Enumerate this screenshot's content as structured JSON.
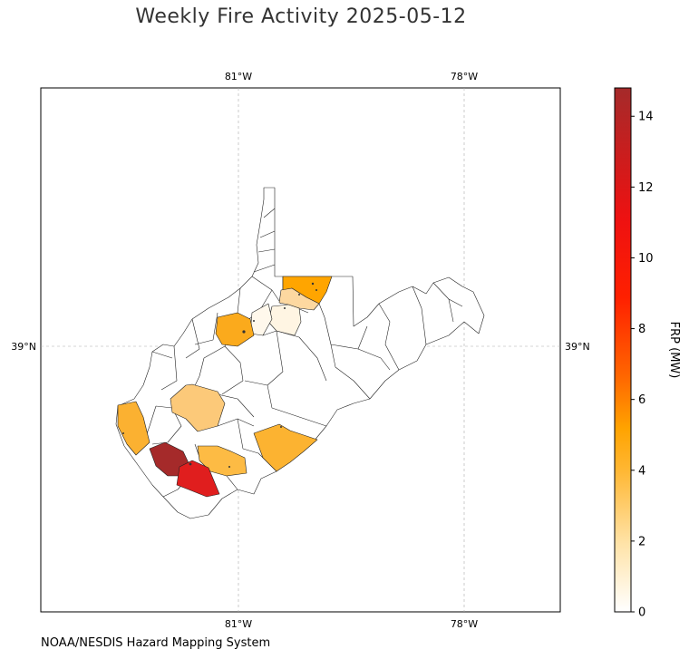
{
  "title": "Weekly Fire Activity 2025-05-12",
  "credit": "NOAA/NESDIS Hazard Mapping System",
  "axes": {
    "lon_ticks": [
      "81°W",
      "78°W"
    ],
    "lat_ticks": [
      "39°N"
    ]
  },
  "colorbar": {
    "label": "FRP (MW)",
    "ticks": [
      "0",
      "2",
      "4",
      "6",
      "8",
      "10",
      "12",
      "14"
    ],
    "min": 0,
    "max": 14.8,
    "colors": [
      "#ffffff",
      "#ffe8b0",
      "#ffbb44",
      "#ffa500",
      "#ff6a00",
      "#ff2200",
      "#ee0000",
      "#b22222"
    ]
  },
  "map": {
    "region": "West Virginia counties",
    "fill_scale": {
      "low": "#fff5e0",
      "mid": "#fdb935",
      "high": "#a83232"
    }
  }
}
